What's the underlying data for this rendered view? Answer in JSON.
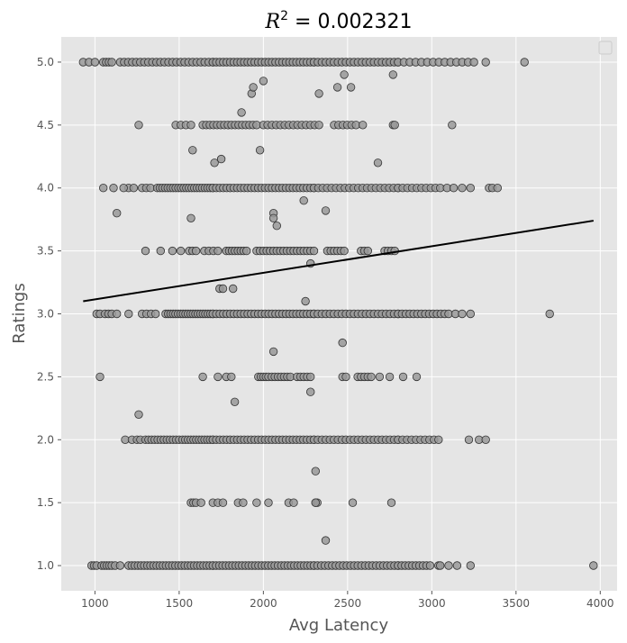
{
  "chart_data": {
    "type": "scatter",
    "title": "R² = 0.002321",
    "title_parts": {
      "var": "R",
      "sup": "2",
      "rest": " = 0.002321"
    },
    "xlabel": "Avg Latency",
    "ylabel": "Ratings",
    "xlim": [
      800,
      4100
    ],
    "ylim": [
      0.8,
      5.2
    ],
    "x_ticks": [
      1000,
      1500,
      2000,
      2500,
      3000,
      3500,
      4000
    ],
    "y_ticks": [
      1.0,
      1.5,
      2.0,
      2.5,
      3.0,
      3.5,
      4.0,
      4.5,
      5.0
    ],
    "y_tick_labels": [
      "1.0",
      "1.5",
      "2.0",
      "2.5",
      "3.0",
      "3.5",
      "4.0",
      "4.5",
      "5.0"
    ],
    "grid": true,
    "legend": "top-right, empty",
    "colors": {
      "background": "#e5e5e5",
      "grid": "#ffffff",
      "point_fill": "#999999",
      "point_edge": "#333333",
      "trend_line": "#000000"
    },
    "trend_line": {
      "x": [
        930,
        3960
      ],
      "y": [
        3.1,
        3.74
      ]
    },
    "bands": [
      {
        "y": 5.0,
        "clusters": [
          [
            930,
            1000,
            3
          ],
          [
            1050,
            1100,
            4
          ],
          [
            1150,
            1700,
            24
          ],
          [
            1700,
            2300,
            30
          ],
          [
            2300,
            2800,
            22
          ],
          [
            2800,
            3250,
            14
          ]
        ],
        "singles": [
          3320,
          3550
        ]
      },
      {
        "y": 4.5,
        "clusters": [
          [
            1480,
            1570,
            4
          ],
          [
            1640,
            1960,
            16
          ],
          [
            2000,
            2330,
            14
          ],
          [
            2420,
            2550,
            6
          ]
        ],
        "singles": [
          1260,
          2590,
          2770,
          2780,
          3120
        ]
      },
      {
        "y": 4.0,
        "clusters": [
          [
            1200,
            1230,
            2
          ],
          [
            1280,
            1330,
            3
          ],
          [
            1370,
            1700,
            22
          ],
          [
            1700,
            2300,
            30
          ],
          [
            2300,
            2800,
            20
          ],
          [
            2800,
            3050,
            10
          ]
        ],
        "singles": [
          1050,
          1110,
          1170,
          3090,
          3130,
          3180,
          3230,
          3340,
          3360,
          3390
        ]
      },
      {
        "y": 3.5,
        "clusters": [
          [
            1560,
            1600,
            3
          ],
          [
            1650,
            1730,
            4
          ],
          [
            1780,
            1900,
            8
          ],
          [
            1960,
            2300,
            18
          ],
          [
            2380,
            2480,
            6
          ],
          [
            2580,
            2620,
            3
          ],
          [
            2720,
            2760,
            3
          ]
        ],
        "singles": [
          1300,
          1390,
          1460,
          1510,
          2780
        ]
      },
      {
        "y": 3.0,
        "clusters": [
          [
            1010,
            1030,
            2
          ],
          [
            1060,
            1100,
            3
          ],
          [
            1280,
            1360,
            4
          ],
          [
            1420,
            1700,
            20
          ],
          [
            1700,
            2300,
            30
          ],
          [
            2300,
            2800,
            22
          ],
          [
            2800,
            3100,
            14
          ]
        ],
        "singles": [
          1130,
          1200,
          3140,
          3180,
          3230,
          3700
        ]
      },
      {
        "y": 2.5,
        "clusters": [
          [
            1780,
            1810,
            2
          ],
          [
            1970,
            2030,
            5
          ],
          [
            2050,
            2160,
            7
          ],
          [
            2200,
            2280,
            5
          ],
          [
            2560,
            2640,
            5
          ]
        ],
        "singles": [
          1030,
          1640,
          1730,
          2470,
          2490,
          2690,
          2750,
          2830,
          2910
        ]
      },
      {
        "y": 2.0,
        "clusters": [
          [
            1180,
            1220,
            2
          ],
          [
            1250,
            1270,
            2
          ],
          [
            1300,
            1500,
            12
          ],
          [
            1520,
            1700,
            12
          ],
          [
            1700,
            2300,
            30
          ],
          [
            2300,
            2800,
            22
          ],
          [
            2800,
            3040,
            10
          ]
        ],
        "singles": [
          3220,
          3280,
          3320
        ]
      },
      {
        "y": 1.5,
        "clusters": [
          [
            1570,
            1600,
            3
          ],
          [
            1700,
            1760,
            3
          ],
          [
            2150,
            2180,
            2
          ],
          [
            2310,
            2320,
            2
          ]
        ],
        "singles": [
          1630,
          1850,
          1880,
          1960,
          2030,
          2530,
          2760
        ]
      },
      {
        "y": 1.0,
        "clusters": [
          [
            980,
            1010,
            3
          ],
          [
            1040,
            1100,
            5
          ],
          [
            1200,
            1700,
            28
          ],
          [
            1700,
            2300,
            32
          ],
          [
            2300,
            2800,
            24
          ],
          [
            2800,
            2990,
            10
          ],
          [
            3040,
            3050,
            2
          ]
        ],
        "singles": [
          1120,
          1150,
          3100,
          3150,
          3230,
          3960
        ]
      }
    ],
    "scatter_points": [
      [
        1870,
        4.6
      ],
      [
        1930,
        4.75
      ],
      [
        1940,
        4.8
      ],
      [
        2000,
        4.85
      ],
      [
        2330,
        4.75
      ],
      [
        2440,
        4.8
      ],
      [
        2480,
        4.9
      ],
      [
        2520,
        4.8
      ],
      [
        2770,
        4.9
      ],
      [
        1580,
        4.3
      ],
      [
        1710,
        4.2
      ],
      [
        1750,
        4.23
      ],
      [
        1980,
        4.3
      ],
      [
        2680,
        4.2
      ],
      [
        1130,
        3.8
      ],
      [
        1570,
        3.76
      ],
      [
        2060,
        3.8
      ],
      [
        2060,
        3.76
      ],
      [
        2080,
        3.7
      ],
      [
        2240,
        3.9
      ],
      [
        2370,
        3.82
      ],
      [
        2280,
        3.4
      ],
      [
        1740,
        3.2
      ],
      [
        1760,
        3.2
      ],
      [
        1820,
        3.2
      ],
      [
        2250,
        3.1
      ],
      [
        2060,
        2.7
      ],
      [
        2470,
        2.77
      ],
      [
        2280,
        2.38
      ],
      [
        1830,
        2.3
      ],
      [
        1260,
        2.2
      ],
      [
        2310,
        1.75
      ],
      [
        2310,
        1.5
      ],
      [
        2370,
        1.2
      ]
    ]
  }
}
